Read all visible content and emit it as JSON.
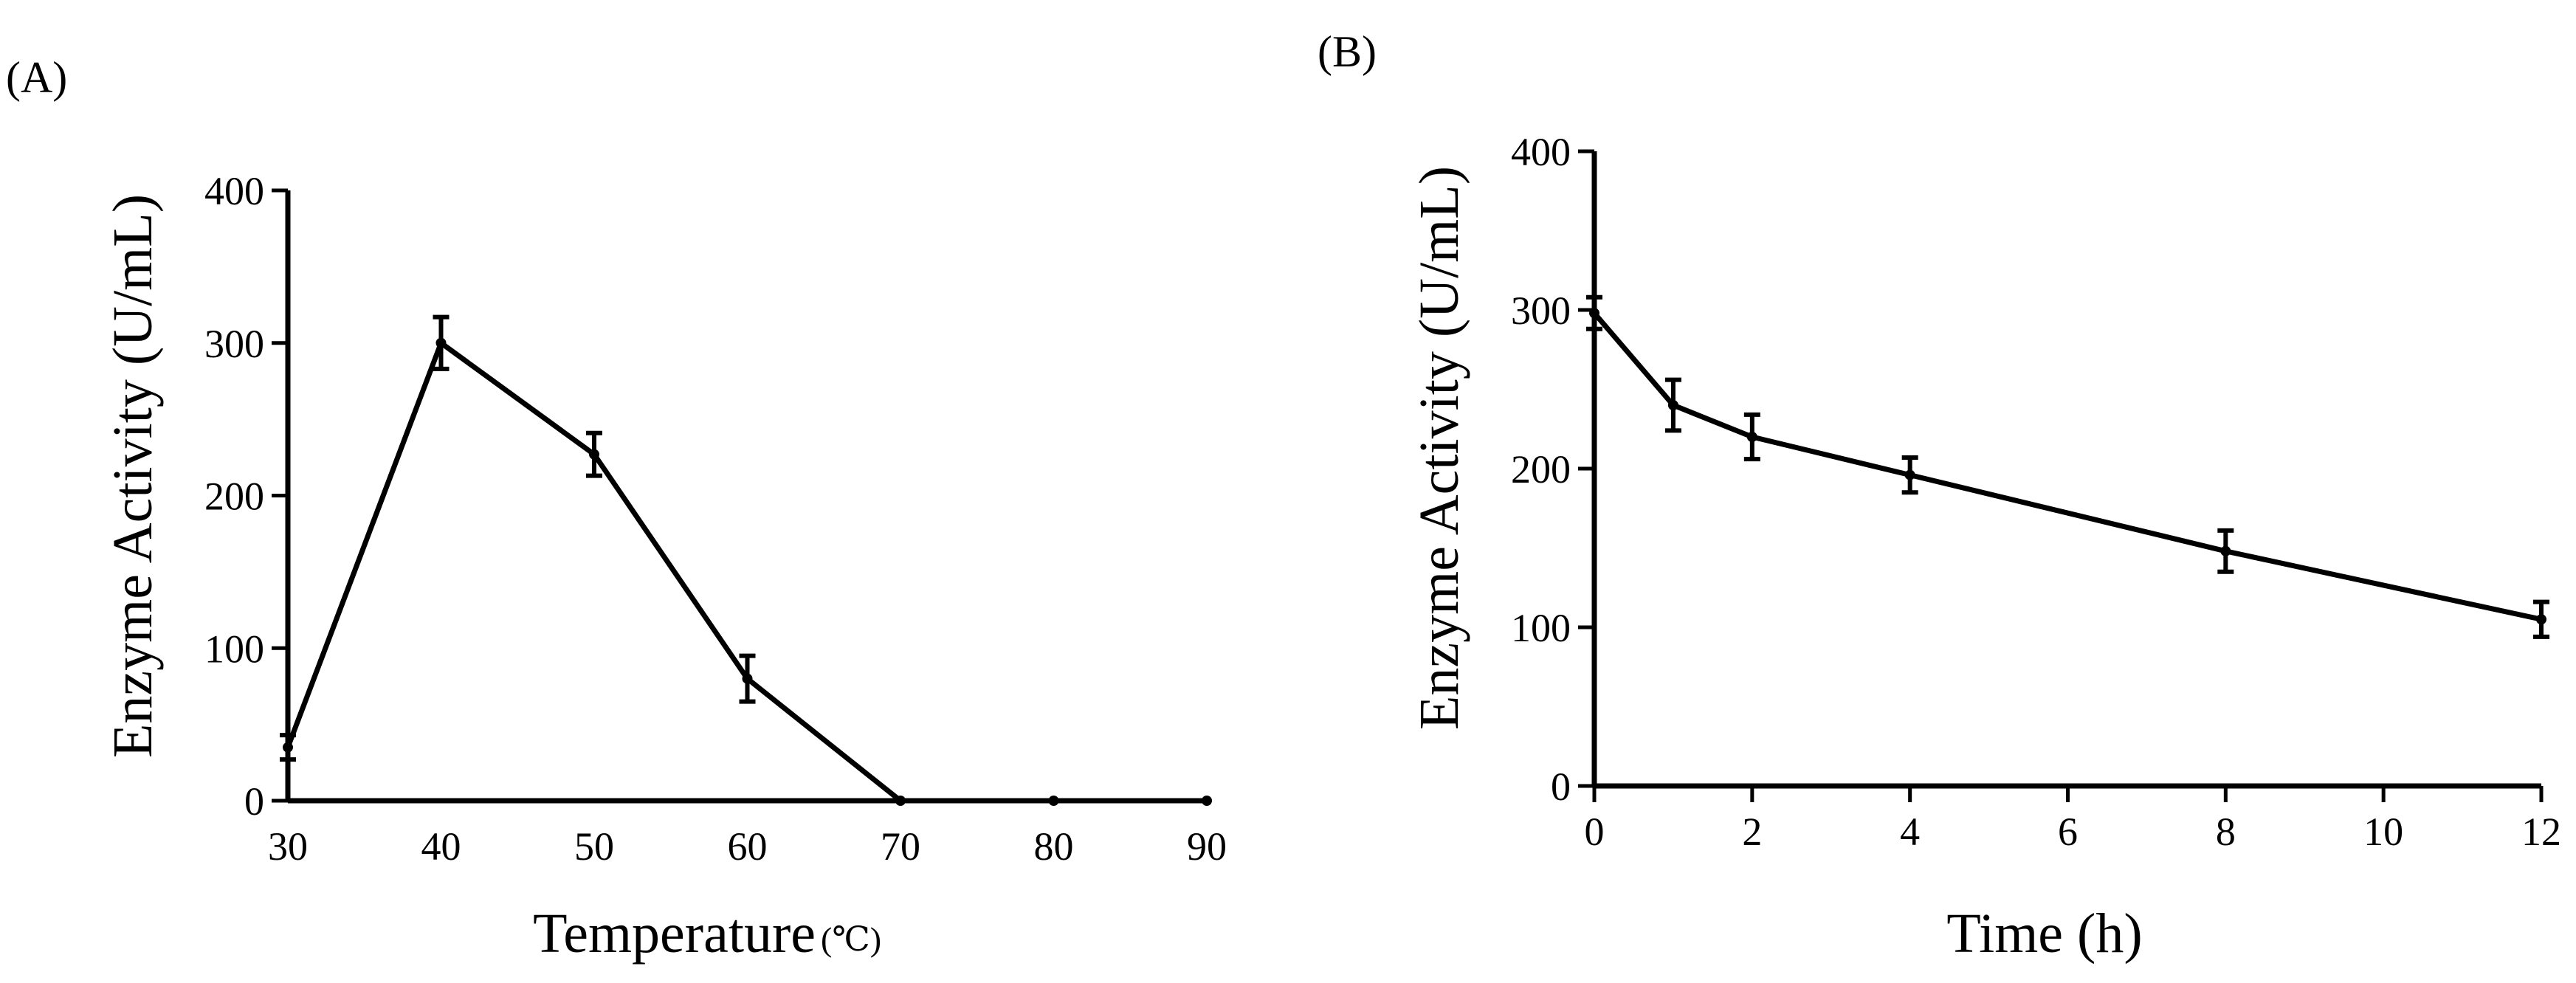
{
  "chart_data": [
    {
      "panel": "(A)",
      "type": "line",
      "xlabel": "Temperature",
      "xlabel_unit": "(℃)",
      "ylabel": "Enzyme Activity (U/mL)",
      "xlim": [
        30,
        90
      ],
      "ylim": [
        0,
        400
      ],
      "xticks": [
        "30",
        "40",
        "50",
        "60",
        "70",
        "80",
        "90"
      ],
      "yticks": [
        "0",
        "100",
        "200",
        "300",
        "400"
      ],
      "points": [
        {
          "x": 30,
          "y": 35,
          "err": 8
        },
        {
          "x": 40,
          "y": 300,
          "err": 17
        },
        {
          "x": 50,
          "y": 227,
          "err": 14
        },
        {
          "x": 60,
          "y": 80,
          "err": 15
        },
        {
          "x": 70,
          "y": 0,
          "err": 0
        },
        {
          "x": 80,
          "y": 0,
          "err": 0
        },
        {
          "x": 90,
          "y": 0,
          "err": 0
        }
      ],
      "line_through": [
        30,
        40,
        50,
        60,
        70,
        80,
        90
      ]
    },
    {
      "panel": "(B)",
      "type": "line",
      "xlabel": "Time (h)",
      "ylabel": "Enzyme Activity (U/mL)",
      "xlim": [
        0,
        12
      ],
      "ylim": [
        0,
        400
      ],
      "xticks": [
        "0",
        "2",
        "4",
        "6",
        "8",
        "10",
        "12"
      ],
      "yticks": [
        "0",
        "100",
        "200",
        "300",
        "400"
      ],
      "points": [
        {
          "x": 0,
          "y": 298,
          "err": 10
        },
        {
          "x": 1,
          "y": 240,
          "err": 16
        },
        {
          "x": 2,
          "y": 220,
          "err": 14
        },
        {
          "x": 4,
          "y": 196,
          "err": 11
        },
        {
          "x": 8,
          "y": 148,
          "err": 13
        },
        {
          "x": 12,
          "y": 105,
          "err": 11
        }
      ]
    }
  ]
}
